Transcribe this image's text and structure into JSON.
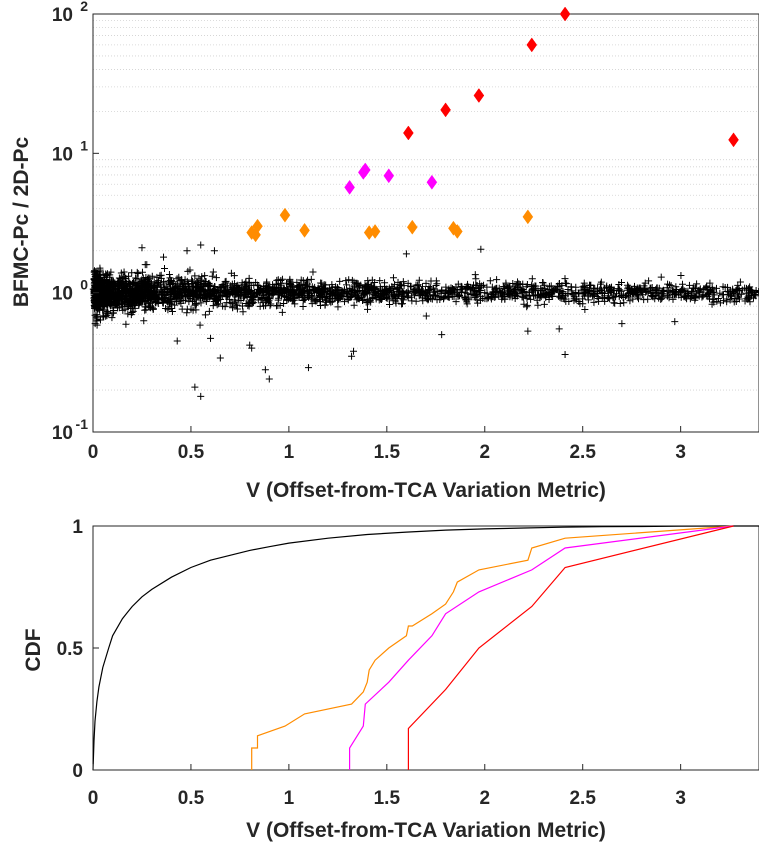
{
  "chart_data": [
    {
      "type": "scatter",
      "title": "",
      "xlabel": "V (Offset-from-TCA Variation Metric)",
      "ylabel": "BFMC-Pc / 2D-Pc",
      "xlim": [
        0,
        3.4
      ],
      "ylim": [
        0.1,
        100
      ],
      "yscale": "log",
      "grid": "horizontal-minor-dotted",
      "x_ticks": [
        0,
        0.5,
        1,
        1.5,
        2,
        2.5,
        3
      ],
      "x_tick_labels": [
        "0",
        "0.5",
        "1",
        "1.5",
        "2",
        "2.5",
        "3"
      ],
      "y_ticks": [
        0.1,
        1,
        10,
        100
      ],
      "y_tick_labels": [
        {
          "base": "10",
          "exp": "-1"
        },
        {
          "base": "10",
          "exp": "0"
        },
        {
          "base": "10",
          "exp": "1"
        },
        {
          "base": "10",
          "exp": "2"
        }
      ],
      "series": [
        {
          "marker": "plus",
          "color": "#000000",
          "description_points": "dense cloud of ratios near 1 across V 0–3.4, with spread larger at small V",
          "x": [
            0.05,
            0.1,
            0.15,
            0.2,
            0.25,
            0.3,
            0.35,
            0.4,
            0.45,
            0.5,
            0.55,
            0.6,
            0.65,
            0.7,
            0.75,
            0.8,
            0.85,
            0.9,
            1.0,
            1.1,
            1.2,
            1.3,
            1.4,
            1.5,
            1.6,
            1.7,
            1.8,
            1.9,
            2.0,
            2.2,
            2.4,
            2.6,
            2.8,
            3.0,
            3.2,
            3.4,
            0.52,
            0.55,
            0.65,
            0.9,
            0.88,
            1.1,
            1.32,
            1.33,
            0.43,
            0.8,
            0.81,
            0.6,
            1.78,
            2.22,
            2.38,
            2.41,
            2.7,
            2.97,
            0.25,
            0.48,
            0.55,
            1.98,
            1.6,
            0.36,
            0.62
          ],
          "y": [
            1.0,
            1.05,
            0.98,
            1.02,
            1.0,
            1.03,
            0.97,
            1.01,
            1.0,
            0.99,
            1.02,
            1.0,
            1.01,
            0.98,
            1.0,
            1.02,
            1.0,
            0.99,
            1.01,
            1.0,
            1.02,
            0.99,
            1.0,
            1.01,
            1.0,
            0.99,
            1.01,
            1.0,
            1.0,
            1.01,
            0.99,
            1.0,
            1.01,
            1.0,
            0.99,
            1.0,
            0.21,
            0.18,
            0.34,
            0.24,
            0.28,
            0.29,
            0.35,
            0.38,
            0.45,
            0.42,
            0.4,
            0.47,
            0.5,
            0.53,
            0.55,
            0.36,
            0.6,
            0.62,
            2.1,
            2.0,
            2.2,
            2.05,
            1.9,
            1.8,
            2.0
          ]
        },
        {
          "marker": "diamond",
          "color": "#ff8c00",
          "x": [
            0.81,
            0.83,
            0.84,
            0.98,
            1.08,
            1.41,
            1.44,
            1.63,
            1.84,
            1.86,
            2.22
          ],
          "y": [
            2.7,
            2.6,
            3.0,
            3.6,
            2.8,
            2.7,
            2.75,
            2.95,
            2.9,
            2.75,
            3.5
          ]
        },
        {
          "marker": "diamond",
          "color": "#ff00ff",
          "x": [
            1.31,
            1.38,
            1.39,
            1.51,
            1.73
          ],
          "y": [
            5.7,
            7.3,
            7.6,
            6.9,
            6.2
          ]
        },
        {
          "marker": "diamond",
          "color": "#ff0000",
          "x": [
            1.61,
            1.8,
            1.97,
            2.24,
            2.41,
            3.27
          ],
          "y": [
            14.0,
            20.5,
            26.0,
            60.0,
            100.0,
            12.5
          ]
        }
      ]
    },
    {
      "type": "line",
      "title": "",
      "xlabel": "V (Offset-from-TCA Variation Metric)",
      "ylabel": "CDF",
      "xlim": [
        0,
        3.4
      ],
      "ylim": [
        0,
        1
      ],
      "x_ticks": [
        0,
        0.5,
        1,
        1.5,
        2,
        2.5,
        3
      ],
      "x_tick_labels": [
        "0",
        "0.5",
        "1",
        "1.5",
        "2",
        "2.5",
        "3"
      ],
      "y_ticks": [
        0,
        0.5,
        1
      ],
      "y_tick_labels": [
        "0",
        "0.5",
        "1"
      ],
      "series": [
        {
          "color": "#000000",
          "x": [
            0,
            0.005,
            0.01,
            0.02,
            0.03,
            0.05,
            0.08,
            0.1,
            0.15,
            0.2,
            0.25,
            0.3,
            0.4,
            0.5,
            0.6,
            0.7,
            0.8,
            0.9,
            1.0,
            1.2,
            1.4,
            1.6,
            1.8,
            2.0,
            2.2,
            2.4,
            2.6,
            2.8,
            3.0,
            3.2,
            3.4
          ],
          "y": [
            0,
            0.12,
            0.2,
            0.28,
            0.34,
            0.42,
            0.5,
            0.55,
            0.62,
            0.67,
            0.71,
            0.74,
            0.79,
            0.83,
            0.86,
            0.88,
            0.9,
            0.915,
            0.93,
            0.95,
            0.965,
            0.975,
            0.983,
            0.988,
            0.992,
            0.995,
            0.997,
            0.998,
            0.999,
            1.0,
            1.0
          ]
        },
        {
          "color": "#ff8c00",
          "x": [
            0.81,
            0.81,
            0.84,
            0.84,
            0.98,
            1.08,
            1.32,
            1.38,
            1.4,
            1.41,
            1.44,
            1.51,
            1.6,
            1.61,
            1.63,
            1.73,
            1.8,
            1.84,
            1.86,
            1.97,
            2.22,
            2.24,
            2.41,
            3.27
          ],
          "y": [
            0,
            0.09,
            0.09,
            0.14,
            0.18,
            0.23,
            0.27,
            0.32,
            0.36,
            0.41,
            0.45,
            0.5,
            0.55,
            0.59,
            0.59,
            0.64,
            0.68,
            0.73,
            0.77,
            0.82,
            0.86,
            0.91,
            0.95,
            1.0
          ]
        },
        {
          "color": "#ff00ff",
          "x": [
            1.31,
            1.31,
            1.38,
            1.39,
            1.51,
            1.61,
            1.73,
            1.8,
            1.97,
            2.24,
            2.41,
            3.27
          ],
          "y": [
            0,
            0.09,
            0.18,
            0.27,
            0.36,
            0.45,
            0.55,
            0.64,
            0.73,
            0.82,
            0.91,
            1.0
          ]
        },
        {
          "color": "#ff0000",
          "x": [
            1.61,
            1.61,
            1.8,
            1.97,
            2.24,
            2.41,
            3.27
          ],
          "y": [
            0,
            0.17,
            0.33,
            0.5,
            0.67,
            0.83,
            1.0
          ]
        }
      ]
    }
  ]
}
